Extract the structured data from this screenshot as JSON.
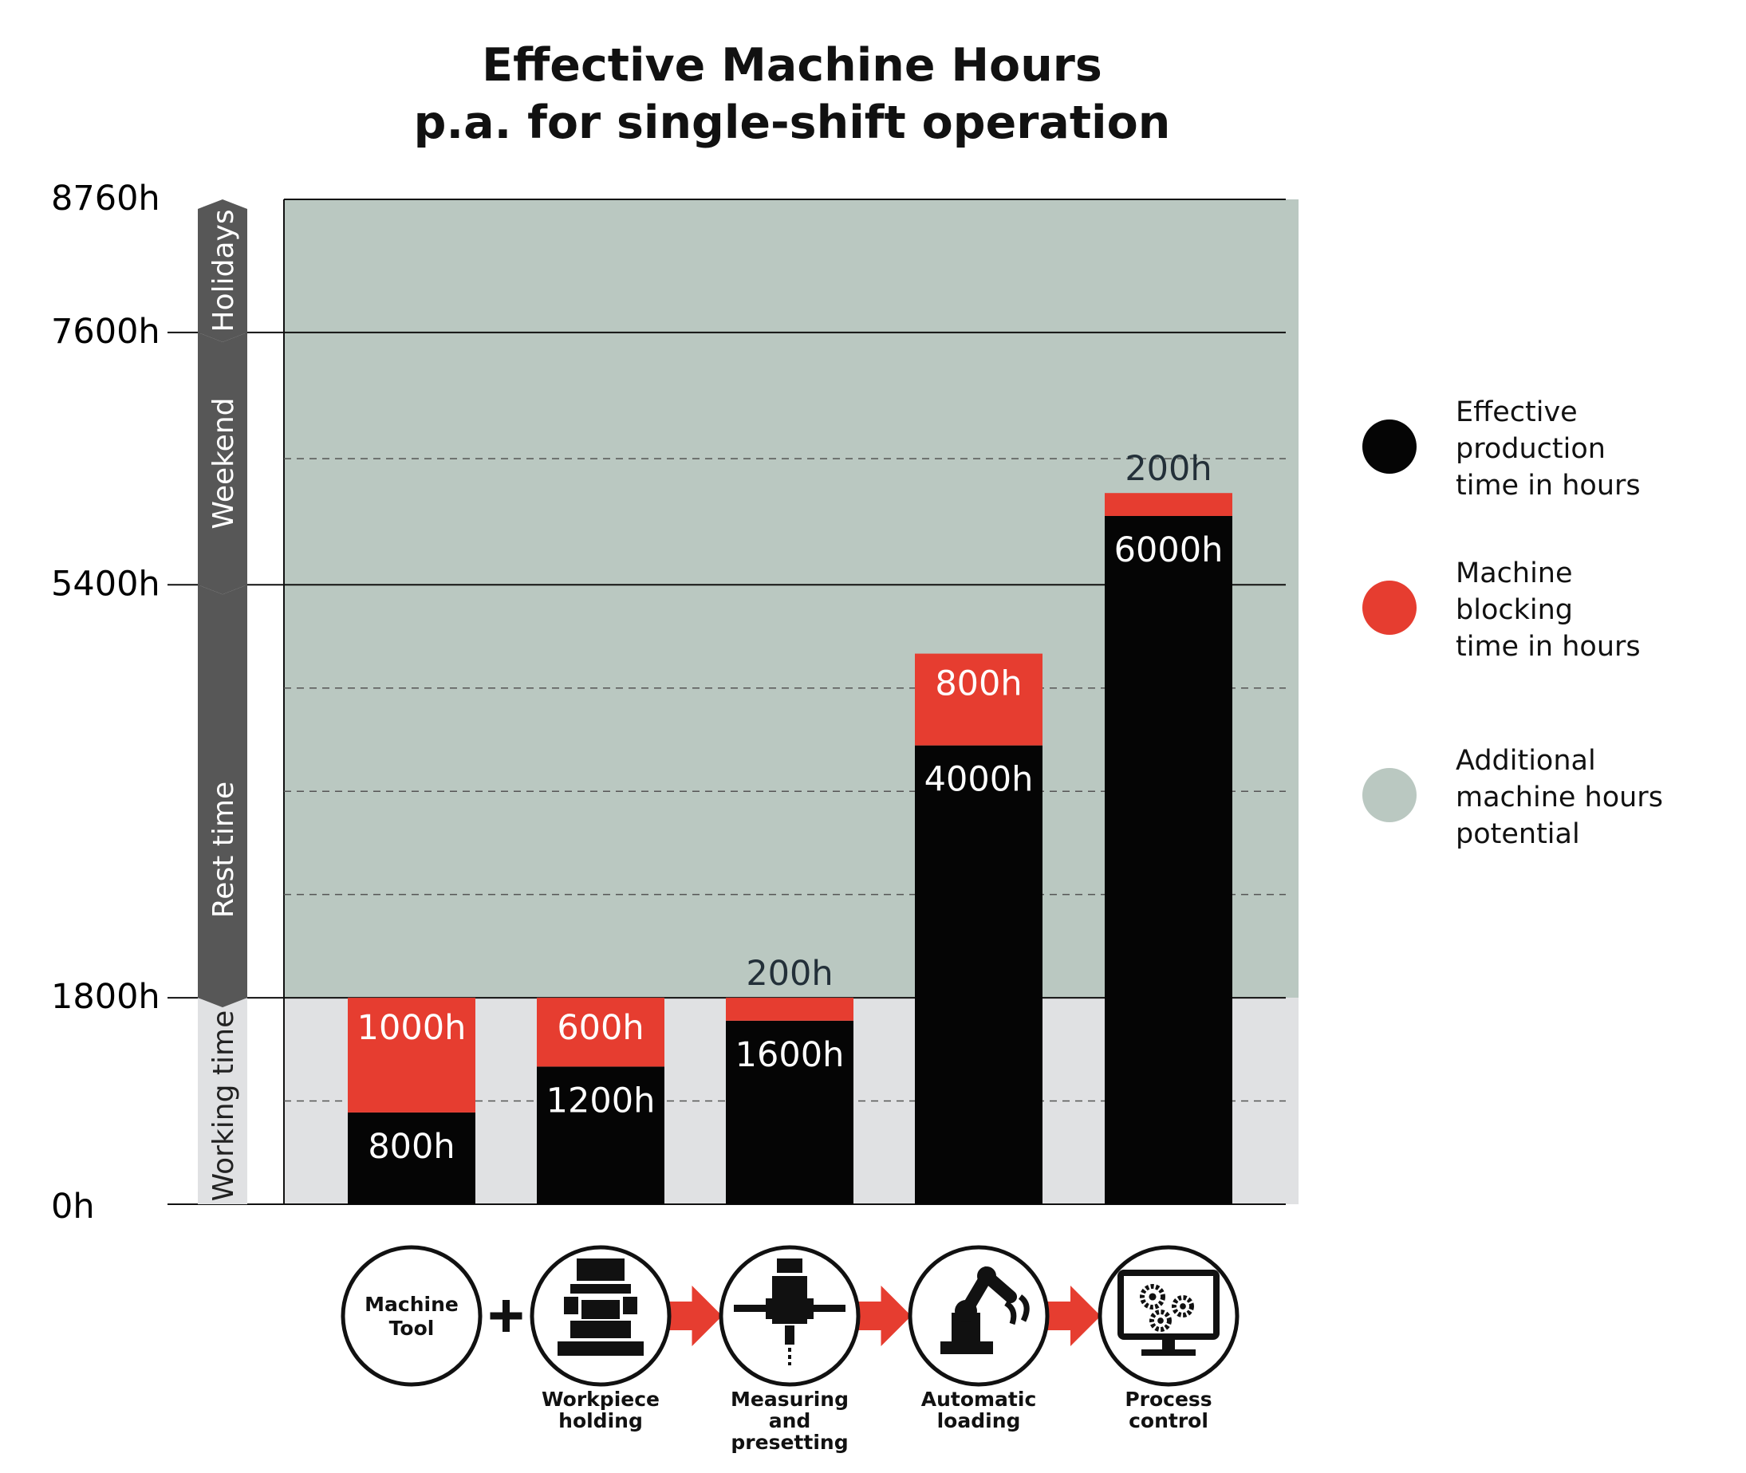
{
  "chart_data": {
    "type": "bar",
    "stacked": true,
    "title": [
      "Effective Machine Hours",
      "p.a. for single-shift operation"
    ],
    "y_ticks": [
      {
        "value": 0,
        "label": "0h"
      },
      {
        "value": 1800,
        "label": "1800h"
      },
      {
        "value": 5400,
        "label": "5400h"
      },
      {
        "value": 7600,
        "label": "7600h"
      },
      {
        "value": 8760,
        "label": "8760h"
      }
    ],
    "ylim": [
      0,
      8760
    ],
    "time_bands": [
      {
        "name": "Working time",
        "from": 0,
        "to": 1800,
        "color": "#e0e1e3"
      },
      {
        "name": "Rest time",
        "from": 1800,
        "to": 5400,
        "color": "#575757"
      },
      {
        "name": "Weekend",
        "from": 5400,
        "to": 7600,
        "color": "#575757"
      },
      {
        "name": "Holidays",
        "from": 7600,
        "to": 8760,
        "color": "#575757"
      }
    ],
    "categories": [
      "Machine Tool",
      "Workpiece holding",
      "Measuring and presetting",
      "Automatic loading",
      "Process control"
    ],
    "category_lines": [
      [
        "Machine",
        "Tool"
      ],
      [
        "Workpiece",
        "holding"
      ],
      [
        "Measuring",
        "and",
        "presetting"
      ],
      [
        "Automatic",
        "loading"
      ],
      [
        "Process",
        "control"
      ]
    ],
    "series": [
      {
        "name": "Effective production time in hours",
        "color": "#050505",
        "values": [
          800,
          1200,
          1600,
          4000,
          6000
        ],
        "labels": [
          "800h",
          "1200h",
          "1600h",
          "4000h",
          "6000h"
        ]
      },
      {
        "name": "Machine blocking time in hours",
        "color": "#e63d30",
        "values": [
          1000,
          600,
          200,
          800,
          200
        ],
        "labels": [
          "1000h",
          "600h",
          "200h",
          "800h",
          "200h"
        ]
      }
    ],
    "legend": [
      {
        "lines": [
          "Effective",
          "production",
          "time in hours"
        ],
        "color": "#050505"
      },
      {
        "lines": [
          "Machine",
          "blocking",
          "time in hours"
        ],
        "color": "#e63d30"
      },
      {
        "lines": [
          "Additional",
          "machine hours",
          "potential"
        ],
        "color": "#bac8c1"
      }
    ],
    "legend_position": "right",
    "background_colors": {
      "working": "#e0e1e3",
      "potential": "#bac8c1"
    },
    "grid": true,
    "icons": [
      "text-circle",
      "workpiece-holding-icon",
      "measuring-presetting-icon",
      "robot-arm-icon",
      "process-control-monitor-icon"
    ],
    "connectors": [
      "plus",
      "arrow",
      "arrow",
      "arrow"
    ]
  }
}
